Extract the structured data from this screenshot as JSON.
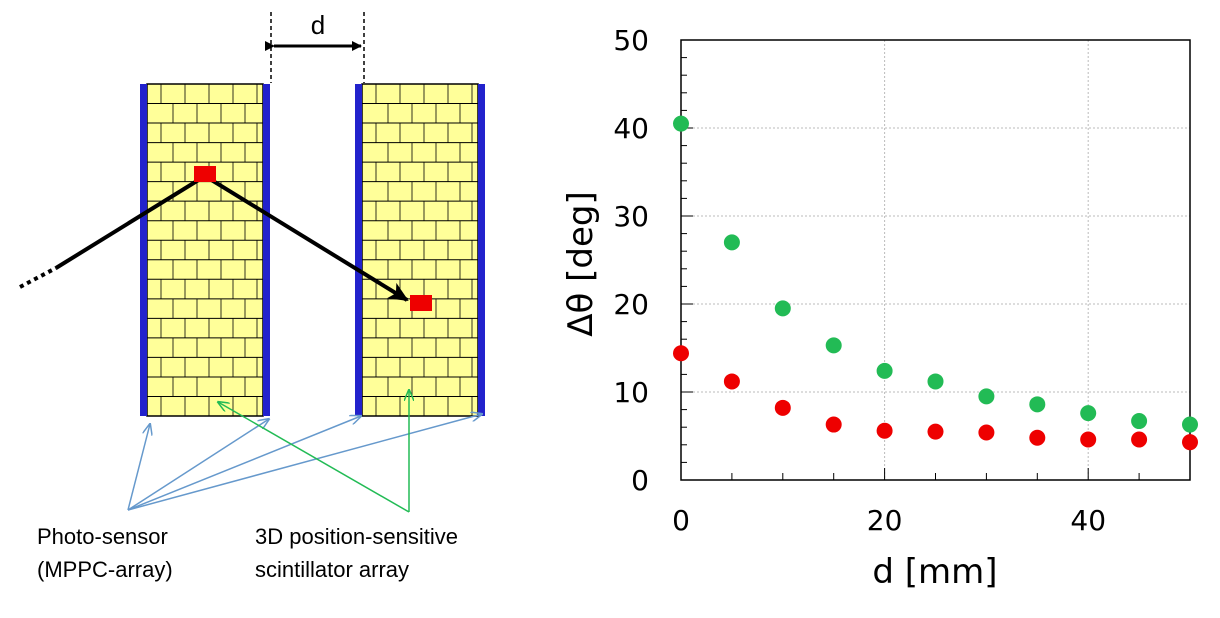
{
  "diagram": {
    "gap_label": "d",
    "photo_sensor_label_line1": "Photo-sensor",
    "photo_sensor_label_line2": "(MPPC-array)",
    "scintillator_label_line1": "3D position-sensitive",
    "scintillator_label_line2": "scintillator array",
    "colors": {
      "scintillator_fill": "#ffff99",
      "sensor_bar": "#2222cc",
      "hit": "#ee0000",
      "photo_sensor_arrow": "#6699cc",
      "scintillator_arrow": "#22bb55"
    }
  },
  "chart_data": {
    "type": "scatter",
    "xlabel": "d [mm]",
    "ylabel": "Δθ [deg]",
    "xlim": [
      0,
      50
    ],
    "ylim": [
      0,
      50
    ],
    "xticks": [
      0,
      20,
      40
    ],
    "yticks": [
      0,
      10,
      20,
      30,
      40,
      50
    ],
    "grid": true,
    "series": [
      {
        "color": "#22bb55",
        "points": [
          [
            0,
            40.5
          ],
          [
            5,
            27
          ],
          [
            10,
            19.5
          ],
          [
            15,
            15.3
          ],
          [
            20,
            12.4
          ],
          [
            25,
            11.2
          ],
          [
            30,
            9.5
          ],
          [
            35,
            8.6
          ],
          [
            40,
            7.6
          ],
          [
            45,
            6.7
          ],
          [
            50,
            6.3
          ]
        ]
      },
      {
        "color": "#ee0000",
        "points": [
          [
            0,
            14.4
          ],
          [
            5,
            11.2
          ],
          [
            10,
            8.2
          ],
          [
            15,
            6.3
          ],
          [
            20,
            5.6
          ],
          [
            25,
            5.5
          ],
          [
            30,
            5.4
          ],
          [
            35,
            4.8
          ],
          [
            40,
            4.6
          ],
          [
            45,
            4.6
          ],
          [
            50,
            4.3
          ]
        ]
      }
    ]
  }
}
